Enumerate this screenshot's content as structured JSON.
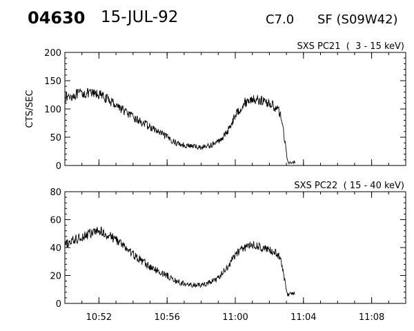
{
  "header": {
    "event_id": "04630",
    "date": "15-JUL-92",
    "goes_class": "C7.0",
    "flare": "SF (S09W42)"
  },
  "chart_data": [
    {
      "type": "line",
      "title": "SXS PC21  (  3 - 15 keV)",
      "ylabel": "CTS/SEC",
      "xlabel": "",
      "xlim": [
        "10:50",
        "11:10"
      ],
      "ylim": [
        0,
        200
      ],
      "yticks": [
        0,
        50,
        100,
        150,
        200
      ],
      "xticks": [
        "10:52",
        "10:56",
        "11:00",
        "11:04",
        "11:08"
      ],
      "x": [
        "10:50",
        "10:51",
        "10:52",
        "10:53",
        "10:54",
        "10:55",
        "10:56",
        "10:56:30",
        "10:57",
        "10:57:30",
        "10:58",
        "10:58:30",
        "10:59",
        "10:59:30",
        "11:00",
        "11:00:30",
        "11:01",
        "11:01:30",
        "11:02",
        "11:02:30",
        "11:02:45",
        "11:02:55",
        "11:03:05",
        "11:03:30"
      ],
      "series": [
        {
          "values": [
            120,
            128,
            126,
            108,
            85,
            68,
            50,
            40,
            36,
            34,
            32,
            35,
            42,
            58,
            88,
            110,
            118,
            115,
            110,
            100,
            80,
            40,
            5,
            6
          ]
        }
      ]
    },
    {
      "type": "line",
      "title": "SXS PC22  ( 15 - 40 keV)",
      "ylabel": "",
      "xlabel": "",
      "xlim": [
        "10:50",
        "11:10"
      ],
      "ylim": [
        0,
        80
      ],
      "yticks": [
        0,
        20,
        40,
        60,
        80
      ],
      "xticks": [
        "10:52",
        "10:56",
        "11:00",
        "11:04",
        "11:08"
      ],
      "x": [
        "10:50",
        "10:51",
        "10:52",
        "10:53",
        "10:54",
        "10:55",
        "10:56",
        "10:56:30",
        "10:57",
        "10:57:30",
        "10:58",
        "10:58:30",
        "10:59",
        "10:59:30",
        "11:00",
        "11:00:30",
        "11:01",
        "11:01:30",
        "11:02",
        "11:02:30",
        "11:02:45",
        "11:02:55",
        "11:03:05",
        "11:03:30"
      ],
      "series": [
        {
          "values": [
            42,
            48,
            52,
            46,
            35,
            26,
            20,
            16,
            14,
            13,
            13,
            15,
            18,
            25,
            35,
            40,
            42,
            40,
            38,
            35,
            28,
            15,
            6,
            8
          ]
        }
      ]
    }
  ]
}
